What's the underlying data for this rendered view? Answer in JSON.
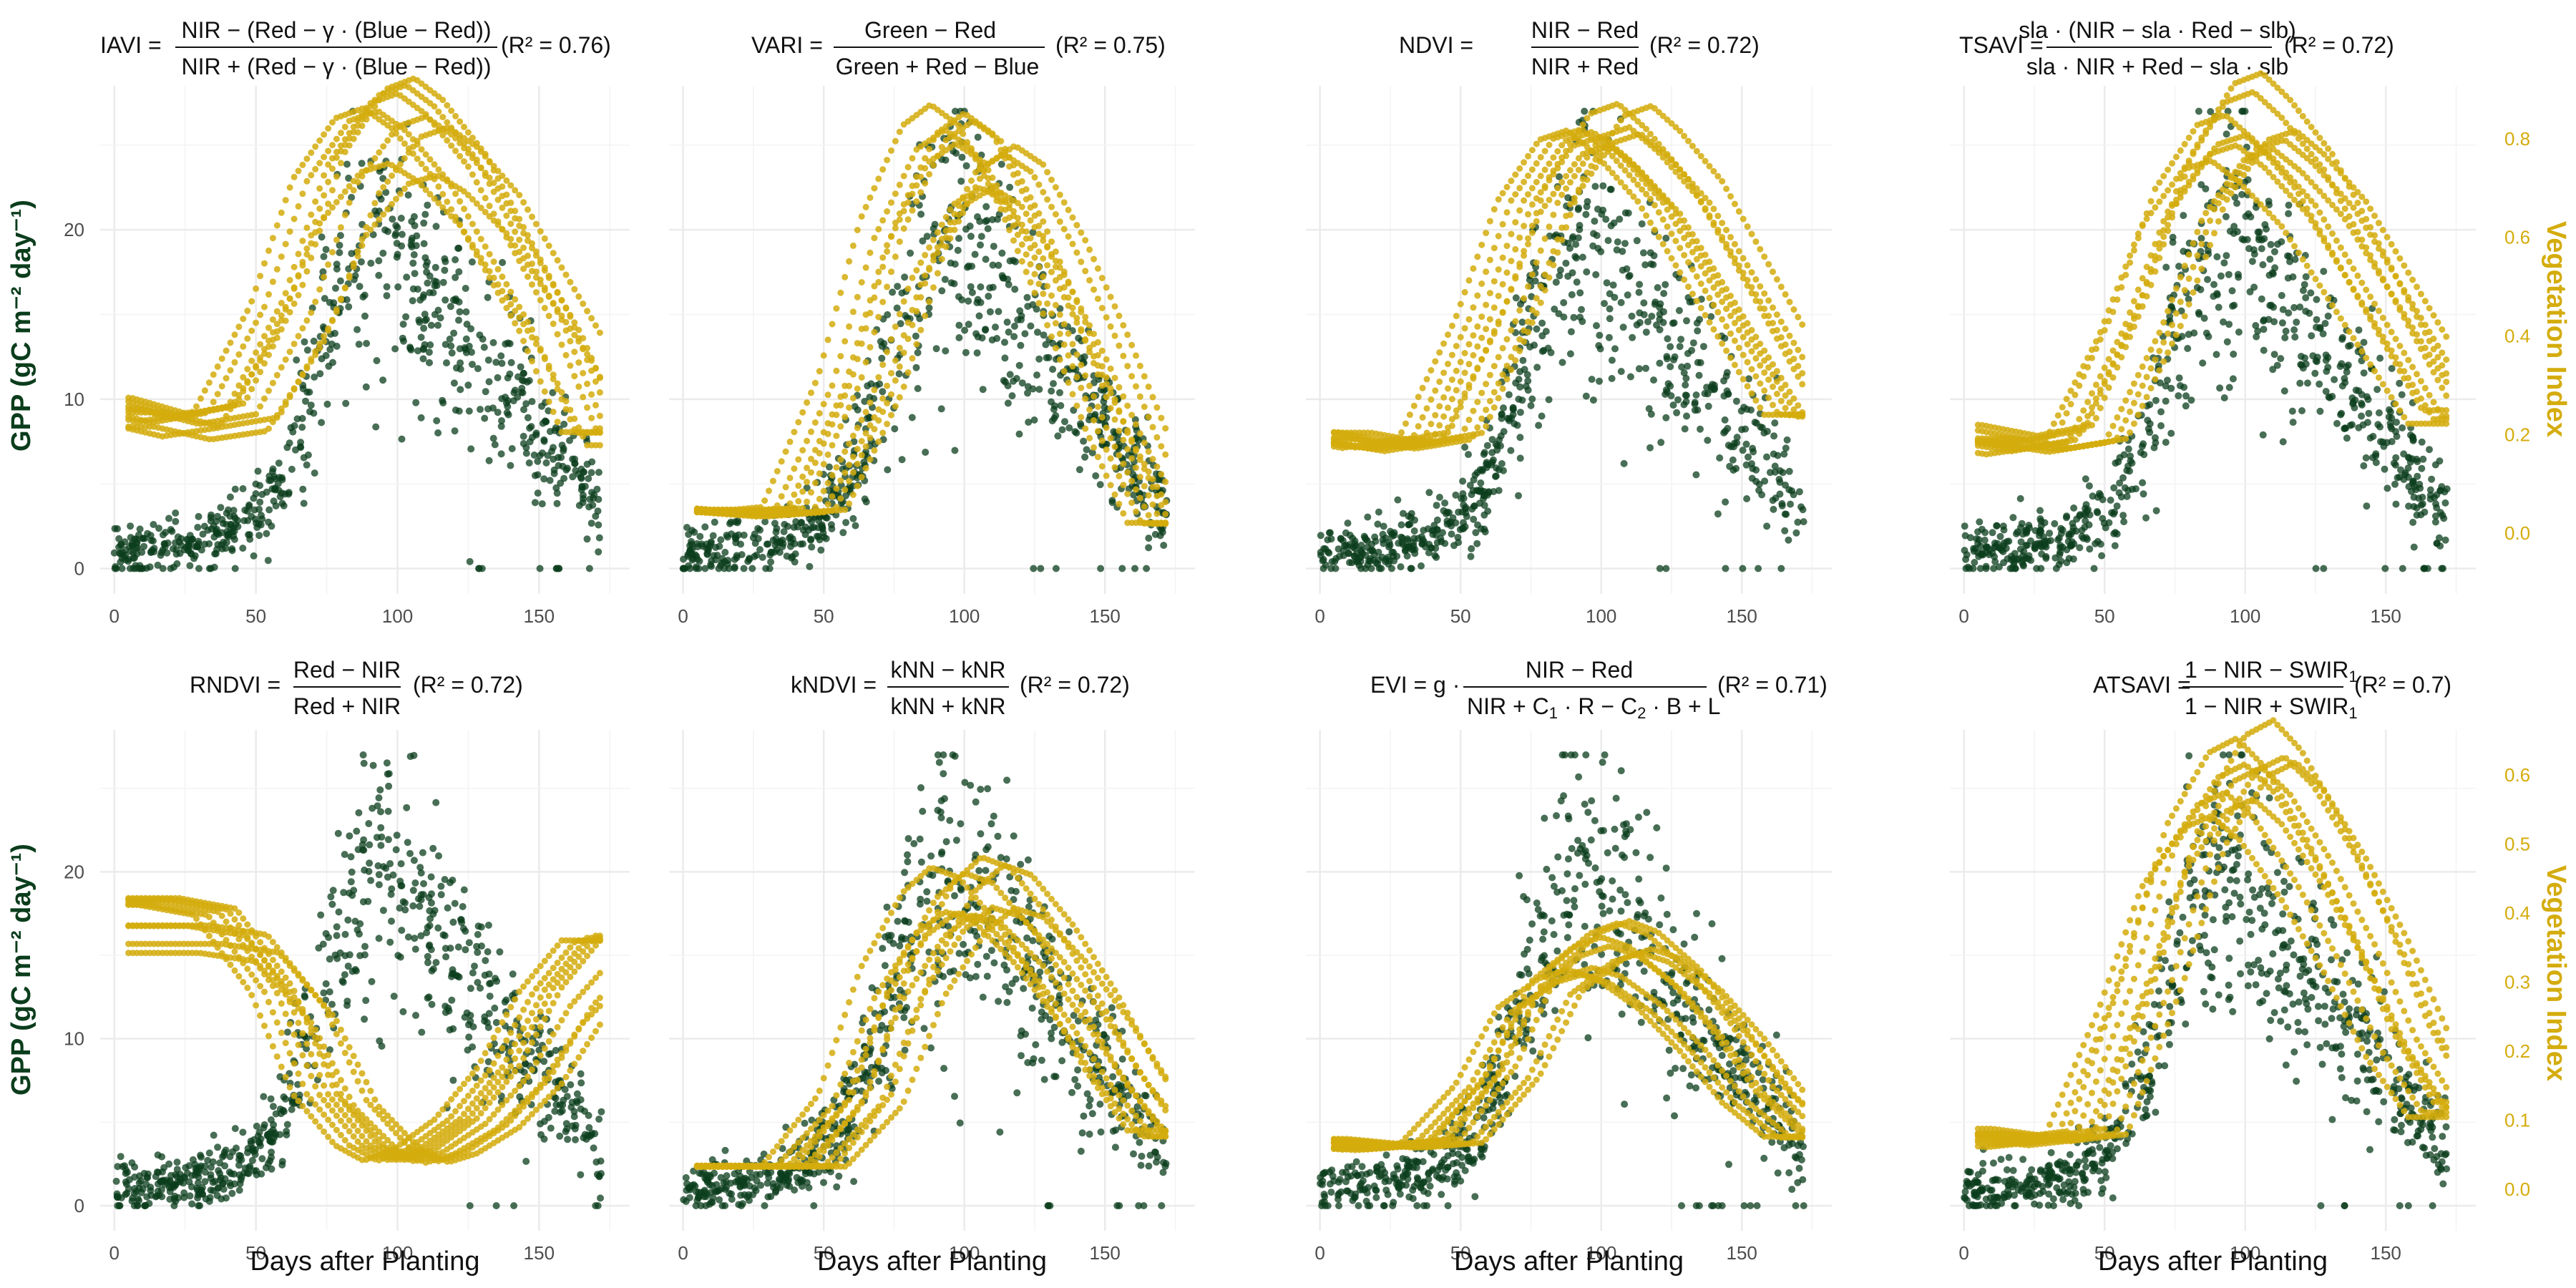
{
  "figure": {
    "gpp_axis_label": "GPP (gC m⁻² day⁻¹)",
    "vi_axis_label": "Vegetation Index",
    "x_axis_label": "Days after Planting",
    "gpp_color": "#0b3d1c",
    "vi_color": "#d4ac0d"
  },
  "chart_data": [
    {
      "type": "scatter",
      "title": "IAVI = (NIR − (Red − γ·(Blue − Red))) / (NIR + (Red − γ·(Blue − Red)))",
      "r2_label": "(R² = 0.76)",
      "xlabel": "",
      "xlim": [
        -5,
        182
      ],
      "xticks": [
        0,
        50,
        100,
        150
      ],
      "ylim": [
        -1.5,
        28.5
      ],
      "yticks": [
        0,
        10,
        20
      ],
      "series": [
        {
          "x": [
            0,
            20,
            40,
            55,
            65,
            75,
            85,
            95,
            100,
            110,
            120,
            135,
            150,
            165,
            172
          ],
          "y": [
            1,
            1.2,
            2,
            4,
            8,
            14,
            18,
            20,
            19,
            17,
            14,
            11,
            8,
            5,
            3
          ]
        },
        {
          "x": [
            0,
            20,
            40,
            60,
            75,
            90,
            100,
            110,
            125,
            140,
            155,
            170
          ],
          "y": [
            0.25,
            0.22,
            0.24,
            0.45,
            0.7,
            0.82,
            0.84,
            0.8,
            0.7,
            0.55,
            0.4,
            0.2
          ]
        }
      ]
    },
    {
      "type": "scatter",
      "title": "VARI = (Green − Red) / (Green + Red − Blue)",
      "r2_label": "(R² = 0.75)",
      "xlabel": "",
      "xlim": [
        -5,
        182
      ],
      "xticks": [
        0,
        50,
        100,
        150
      ],
      "ylim": [
        -1.5,
        28.5
      ],
      "yticks": [
        0,
        10,
        20
      ],
      "series": [
        {
          "x": [
            0,
            20,
            40,
            55,
            65,
            75,
            85,
            95,
            100,
            110,
            120,
            135,
            150,
            165,
            172
          ],
          "y": [
            1,
            1.2,
            2,
            4,
            8,
            14,
            18,
            20,
            19,
            17,
            14,
            11,
            8,
            5,
            3
          ]
        },
        {
          "x": [
            0,
            20,
            40,
            60,
            75,
            90,
            100,
            110,
            125,
            140,
            155,
            170
          ],
          "y": [
            0.05,
            0.04,
            0.05,
            0.3,
            0.6,
            0.78,
            0.82,
            0.78,
            0.62,
            0.42,
            0.2,
            0.02
          ]
        }
      ]
    },
    {
      "type": "scatter",
      "title": "NDVI = (NIR − Red) / (NIR + Red)",
      "r2_label": "(R² = 0.72)",
      "xlabel": "",
      "xlim": [
        -5,
        182
      ],
      "xticks": [
        0,
        50,
        100,
        150
      ],
      "ylim": [
        -1.5,
        28.5
      ],
      "yticks": [
        0,
        10,
        20
      ],
      "series": [
        {
          "x": [
            0,
            20,
            40,
            55,
            65,
            75,
            85,
            95,
            100,
            110,
            120,
            135,
            150,
            165,
            172
          ],
          "y": [
            1,
            1.2,
            2,
            4,
            8,
            14,
            18,
            20,
            19,
            17,
            14,
            11,
            8,
            5,
            3
          ]
        },
        {
          "x": [
            0,
            20,
            40,
            60,
            75,
            90,
            100,
            110,
            125,
            140,
            155,
            170
          ],
          "y": [
            0.2,
            0.18,
            0.2,
            0.45,
            0.7,
            0.83,
            0.85,
            0.8,
            0.7,
            0.55,
            0.4,
            0.25
          ]
        }
      ]
    },
    {
      "type": "scatter",
      "title": "TSAVI = sla·(NIR − sla·Red − slb) / (sla·NIR + Red − sla·slb)",
      "r2_label": "(R² = 0.72)",
      "xlabel": "",
      "xlim": [
        -5,
        182
      ],
      "xticks": [
        0,
        50,
        100,
        150
      ],
      "ylim": [
        -1.5,
        28.5
      ],
      "yticks": [
        0,
        10,
        20
      ],
      "y2lim": [
        -0.123,
        0.907
      ],
      "y2ticks": [
        0.0,
        0.2,
        0.4,
        0.6,
        0.8
      ],
      "series": [
        {
          "x": [
            0,
            20,
            40,
            55,
            65,
            75,
            85,
            95,
            100,
            110,
            120,
            135,
            150,
            165,
            172
          ],
          "y": [
            1,
            1.2,
            2,
            4,
            8,
            14,
            18,
            20,
            19,
            17,
            14,
            11,
            8,
            5,
            3
          ]
        },
        {
          "x": [
            0,
            20,
            40,
            60,
            75,
            90,
            100,
            110,
            125,
            140,
            155,
            170
          ],
          "y": [
            0.2,
            0.18,
            0.2,
            0.45,
            0.7,
            0.83,
            0.85,
            0.8,
            0.7,
            0.55,
            0.4,
            0.25
          ]
        }
      ]
    },
    {
      "type": "scatter",
      "title": "RNDVI = (Red − NIR) / (Red + NIR)",
      "r2_label": "(R² = 0.72)",
      "xlabel": "Days after Planting",
      "xlim": [
        -5,
        182
      ],
      "xticks": [
        0,
        50,
        100,
        150
      ],
      "ylim": [
        -1.5,
        28.5
      ],
      "yticks": [
        0,
        10,
        20
      ],
      "series": [
        {
          "x": [
            0,
            20,
            40,
            55,
            65,
            75,
            85,
            95,
            100,
            110,
            120,
            135,
            150,
            165,
            172
          ],
          "y": [
            1,
            1.2,
            2,
            4,
            8,
            14,
            18,
            20,
            19,
            17,
            14,
            11,
            8,
            5,
            3
          ]
        },
        {
          "x": [
            0,
            20,
            40,
            60,
            75,
            90,
            100,
            110,
            125,
            140,
            155,
            170
          ],
          "y": [
            0.52,
            0.52,
            0.5,
            0.35,
            0.15,
            0.05,
            0.02,
            0.04,
            0.1,
            0.2,
            0.35,
            0.45
          ]
        }
      ]
    },
    {
      "type": "scatter",
      "title": "kNDVI = (kNN − kNR) / (kNN + kNR)",
      "r2_label": "(R² = 0.72)",
      "xlabel": "Days after Planting",
      "xlim": [
        -5,
        182
      ],
      "xticks": [
        0,
        50,
        100,
        150
      ],
      "ylim": [
        -1.5,
        28.5
      ],
      "yticks": [
        0,
        10,
        20
      ],
      "series": [
        {
          "x": [
            0,
            20,
            40,
            55,
            65,
            75,
            85,
            95,
            100,
            110,
            120,
            135,
            150,
            165,
            172
          ],
          "y": [
            1,
            1.2,
            2,
            4,
            8,
            14,
            18,
            20,
            19,
            17,
            14,
            11,
            8,
            5,
            3
          ]
        },
        {
          "x": [
            0,
            20,
            40,
            60,
            75,
            90,
            100,
            110,
            125,
            140,
            155,
            170
          ],
          "y": [
            0.01,
            0.01,
            0.01,
            0.15,
            0.4,
            0.55,
            0.6,
            0.58,
            0.48,
            0.35,
            0.2,
            0.08
          ]
        }
      ]
    },
    {
      "type": "scatter",
      "title": "EVI = g·(NIR − Red) / (NIR + C₁·R − C₂·B + L)",
      "r2_label": "(R² = 0.71)",
      "xlabel": "Days after Planting",
      "xlim": [
        -5,
        182
      ],
      "xticks": [
        0,
        50,
        100,
        150
      ],
      "ylim": [
        -1.5,
        28.5
      ],
      "yticks": [
        0,
        10,
        20
      ],
      "series": [
        {
          "x": [
            0,
            20,
            40,
            55,
            65,
            75,
            85,
            95,
            100,
            110,
            120,
            135,
            150,
            165,
            172
          ],
          "y": [
            1,
            1.2,
            2,
            4,
            8,
            14,
            18,
            20,
            19,
            17,
            14,
            11,
            8,
            5,
            3
          ]
        },
        {
          "x": [
            0,
            20,
            40,
            60,
            75,
            90,
            100,
            110,
            125,
            140,
            155,
            170
          ],
          "y": [
            0.06,
            0.05,
            0.06,
            0.2,
            0.38,
            0.45,
            0.47,
            0.45,
            0.38,
            0.28,
            0.16,
            0.08
          ]
        }
      ]
    },
    {
      "type": "scatter",
      "title": "ATSAVI = (1 − NIR − SWIR₁) / (1 − NIR + SWIR₁)",
      "r2_label": "(R² = 0.7)",
      "xlabel": "Days after Planting",
      "xlim": [
        -5,
        182
      ],
      "xticks": [
        0,
        50,
        100,
        150
      ],
      "ylim": [
        -1.5,
        28.5
      ],
      "yticks": [
        0,
        10,
        20
      ],
      "y2lim": [
        -0.06,
        0.665
      ],
      "y2ticks": [
        0.0,
        0.1,
        0.2,
        0.3,
        0.4,
        0.5,
        0.6
      ],
      "series": [
        {
          "x": [
            0,
            20,
            40,
            55,
            65,
            75,
            85,
            95,
            100,
            110,
            120,
            135,
            150,
            165,
            172
          ],
          "y": [
            1,
            1.2,
            2,
            4,
            8,
            14,
            18,
            20,
            19,
            17,
            14,
            11,
            8,
            5,
            3
          ]
        },
        {
          "x": [
            0,
            20,
            40,
            60,
            75,
            90,
            100,
            110,
            125,
            140,
            155,
            170
          ],
          "y": [
            0.08,
            0.07,
            0.08,
            0.3,
            0.5,
            0.6,
            0.62,
            0.58,
            0.48,
            0.36,
            0.22,
            0.12
          ]
        }
      ]
    }
  ]
}
